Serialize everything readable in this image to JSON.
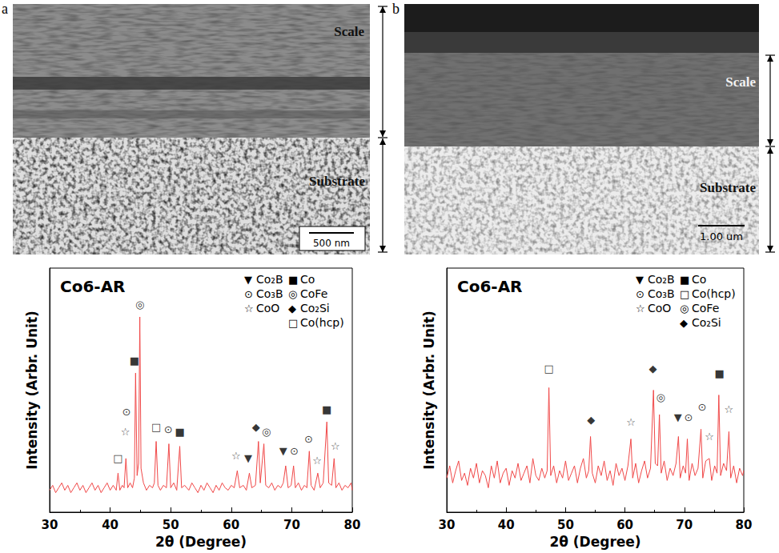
{
  "micrographs": [
    {
      "letter": "a",
      "regions": [
        "Scale",
        "Substrate"
      ],
      "scale_bar": "500 nm"
    },
    {
      "letter": "b",
      "regions": [
        "Scale",
        "Substrate"
      ],
      "scale_bar": "1.00 um"
    }
  ],
  "chart_data": [
    {
      "type": "line",
      "title": "Co6-AR",
      "x_label": "2θ (Degree)",
      "y_label": "Intensity (Arbr. Unit)",
      "xlim": [
        30,
        80
      ],
      "xticks": [
        30,
        40,
        50,
        60,
        70,
        80
      ],
      "ylim": [
        0,
        100
      ],
      "tick_labels": "x",
      "x": [
        30,
        30.5,
        31,
        31.5,
        32,
        32.5,
        33,
        33.5,
        34,
        34.5,
        35,
        35.5,
        36,
        36.5,
        37,
        37.5,
        38,
        38.5,
        39,
        39.5,
        40,
        40.5,
        41,
        41.3,
        41.6,
        42,
        42.3,
        42.6,
        42.9,
        43.3,
        43.7,
        44.0,
        44.2,
        44.45,
        44.7,
        44.9,
        45.1,
        45.5,
        46,
        46.5,
        47,
        47.3,
        47.6,
        47.9,
        48.3,
        48.8,
        49.3,
        49.7,
        50.0,
        50.5,
        51,
        51.5,
        51.8,
        52.3,
        53,
        53.5,
        54,
        54.5,
        55,
        55.5,
        56,
        56.5,
        57,
        57.5,
        58,
        58.5,
        59,
        59.5,
        60,
        60.5,
        61,
        61.4,
        62,
        62.5,
        63,
        63.4,
        64,
        64.5,
        64.8,
        65.4,
        65.7,
        66.2,
        66.7,
        67.2,
        67.7,
        68.2,
        68.6,
        69,
        69.4,
        69.9,
        70.3,
        70.6,
        71.1,
        71.6,
        72.1,
        72.5,
        72.9,
        73.2,
        73.7,
        74.3,
        74.7,
        75.2,
        75.8,
        76.1,
        76.6,
        77,
        77.3,
        77.8,
        78.3,
        78.8,
        79.3,
        79.8,
        80
      ],
      "series": [
        {
          "color": "#f04848",
          "values": [
            9,
            11,
            8,
            10,
            12,
            9,
            11,
            8,
            10,
            12,
            9,
            11,
            8,
            10,
            12,
            9,
            11,
            8,
            10,
            12,
            9,
            11,
            9,
            16,
            9,
            11,
            10,
            22,
            10,
            12,
            10,
            14,
            57,
            15,
            20,
            80,
            18,
            12,
            9,
            11,
            10,
            12,
            29,
            11,
            9,
            11,
            10,
            28,
            10,
            12,
            9,
            27,
            10,
            11,
            9,
            12,
            10,
            8,
            11,
            9,
            12,
            10,
            8,
            11,
            9,
            12,
            10,
            9,
            11,
            10,
            17,
            10,
            11,
            9,
            16,
            10,
            11,
            29,
            12,
            28,
            11,
            10,
            12,
            9,
            11,
            10,
            12,
            19,
            10,
            11,
            19,
            10,
            12,
            9,
            11,
            10,
            25,
            11,
            9,
            16,
            10,
            12,
            37,
            12,
            11,
            22,
            10,
            12,
            9,
            11,
            10,
            12,
            9
          ]
        }
      ],
      "annotations": [
        {
          "text": "□",
          "x": 41.3,
          "y": 22
        },
        {
          "text": "☆",
          "x": 42.5,
          "y": 33
        },
        {
          "text": "⊙",
          "x": 42.7,
          "y": 41
        },
        {
          "text": "■",
          "x": 44.0,
          "y": 62
        },
        {
          "text": "◎",
          "x": 44.9,
          "y": 85
        },
        {
          "text": "□",
          "x": 47.6,
          "y": 35
        },
        {
          "text": "⊙",
          "x": 49.6,
          "y": 34
        },
        {
          "text": "■",
          "x": 51.5,
          "y": 33
        },
        {
          "text": "☆",
          "x": 60.8,
          "y": 23
        },
        {
          "text": "▼",
          "x": 62.8,
          "y": 22
        },
        {
          "text": "◆",
          "x": 64.1,
          "y": 35
        },
        {
          "text": "◎",
          "x": 65.8,
          "y": 33
        },
        {
          "text": "▼",
          "x": 68.6,
          "y": 25
        },
        {
          "text": "⊙",
          "x": 70.4,
          "y": 25
        },
        {
          "text": "⊙",
          "x": 72.8,
          "y": 30
        },
        {
          "text": "☆",
          "x": 74.2,
          "y": 21
        },
        {
          "text": "■",
          "x": 75.8,
          "y": 42
        },
        {
          "text": "☆",
          "x": 77.2,
          "y": 27
        }
      ],
      "legend_items": [
        [
          {
            "symbol": "▼",
            "label": "Co₂B"
          },
          {
            "symbol": "⊙",
            "label": "Co₃B"
          },
          {
            "symbol": "☆",
            "label": "CoO"
          }
        ],
        [
          {
            "symbol": "■",
            "label": "Co"
          },
          {
            "symbol": "◎",
            "label": "CoFe"
          },
          {
            "symbol": "◆",
            "label": "Co₂Si"
          },
          {
            "symbol": "□",
            "label": "Co(hcp)"
          }
        ]
      ]
    },
    {
      "type": "line",
      "title": "Co6-AR",
      "x_label": "2θ (Degree)",
      "y_label": "Intensity (Arbr. Unit)",
      "xlim": [
        30,
        80
      ],
      "xticks": [
        30,
        40,
        50,
        60,
        70,
        80
      ],
      "ylim": [
        0,
        100
      ],
      "tick_labels": "x",
      "x": [
        30,
        30.5,
        31,
        31.5,
        32,
        32.5,
        33,
        33.5,
        34,
        34.5,
        35,
        35.5,
        36,
        36.5,
        37,
        37.5,
        38,
        38.5,
        39,
        39.5,
        40,
        40.5,
        41,
        41.5,
        42,
        42.5,
        43,
        43.5,
        44,
        44.5,
        45,
        45.5,
        46,
        46.5,
        46.9,
        47.2,
        47.5,
        48,
        48.5,
        49,
        49.5,
        50,
        50.5,
        51,
        51.5,
        52,
        52.5,
        53,
        53.5,
        53.9,
        54.2,
        54.5,
        55,
        55.5,
        56,
        56.5,
        57,
        57.5,
        58,
        58.5,
        59,
        59.5,
        60,
        60.5,
        61,
        61.3,
        61.8,
        62.3,
        62.8,
        63.3,
        63.8,
        64.3,
        64.8,
        65.1,
        65.5,
        65.8,
        66.1,
        66.6,
        67.1,
        67.6,
        68.1,
        68.6,
        69,
        69.3,
        69.8,
        70.2,
        70.5,
        70.8,
        71.3,
        71.8,
        72.3,
        72.8,
        73.1,
        73.6,
        74.2,
        74.6,
        75.1,
        75.5,
        75.8,
        76.1,
        76.6,
        77.1,
        77.5,
        77.8,
        78.3,
        78.8,
        79.3,
        79.8,
        80
      ],
      "series": [
        {
          "color": "#f04848",
          "values": [
            14,
            19,
            12,
            17,
            21,
            13,
            16,
            11,
            18,
            14,
            20,
            12,
            17,
            15,
            10,
            19,
            14,
            21,
            12,
            16,
            18,
            11,
            17,
            14,
            20,
            13,
            16,
            19,
            12,
            22,
            15,
            13,
            18,
            14,
            17,
            51,
            15,
            19,
            12,
            17,
            14,
            21,
            13,
            16,
            19,
            12,
            18,
            22,
            14,
            17,
            31,
            16,
            12,
            19,
            15,
            21,
            13,
            17,
            11,
            20,
            15,
            18,
            13,
            19,
            30,
            14,
            20,
            12,
            17,
            21,
            14,
            18,
            50,
            20,
            19,
            40,
            16,
            21,
            13,
            18,
            15,
            20,
            31,
            14,
            19,
            16,
            30,
            13,
            20,
            15,
            18,
            34,
            14,
            21,
            22,
            13,
            19,
            16,
            48,
            15,
            20,
            17,
            33,
            14,
            19,
            12,
            18,
            15,
            17
          ]
        }
      ],
      "annotations": [
        {
          "text": "□",
          "x": 47.2,
          "y": 59
        },
        {
          "text": "◆",
          "x": 54.3,
          "y": 38
        },
        {
          "text": "☆",
          "x": 61.0,
          "y": 37
        },
        {
          "text": "◆",
          "x": 64.7,
          "y": 59
        },
        {
          "text": "◎",
          "x": 66.0,
          "y": 47
        },
        {
          "text": "▼",
          "x": 68.9,
          "y": 39
        },
        {
          "text": "⊙",
          "x": 70.7,
          "y": 39
        },
        {
          "text": "⊙",
          "x": 73.0,
          "y": 43
        },
        {
          "text": "☆",
          "x": 74.2,
          "y": 31
        },
        {
          "text": "■",
          "x": 75.9,
          "y": 57
        },
        {
          "text": "☆",
          "x": 77.5,
          "y": 42
        }
      ],
      "legend_items": [
        [
          {
            "symbol": "▼",
            "label": "Co₂B"
          },
          {
            "symbol": "⊙",
            "label": "Co₃B"
          },
          {
            "symbol": "☆",
            "label": "CoO"
          }
        ],
        [
          {
            "symbol": "■",
            "label": "Co"
          },
          {
            "symbol": "□",
            "label": "Co(hcp)"
          },
          {
            "symbol": "◎",
            "label": "CoFe"
          },
          {
            "symbol": "◆",
            "label": "Co₂Si"
          }
        ]
      ]
    }
  ]
}
